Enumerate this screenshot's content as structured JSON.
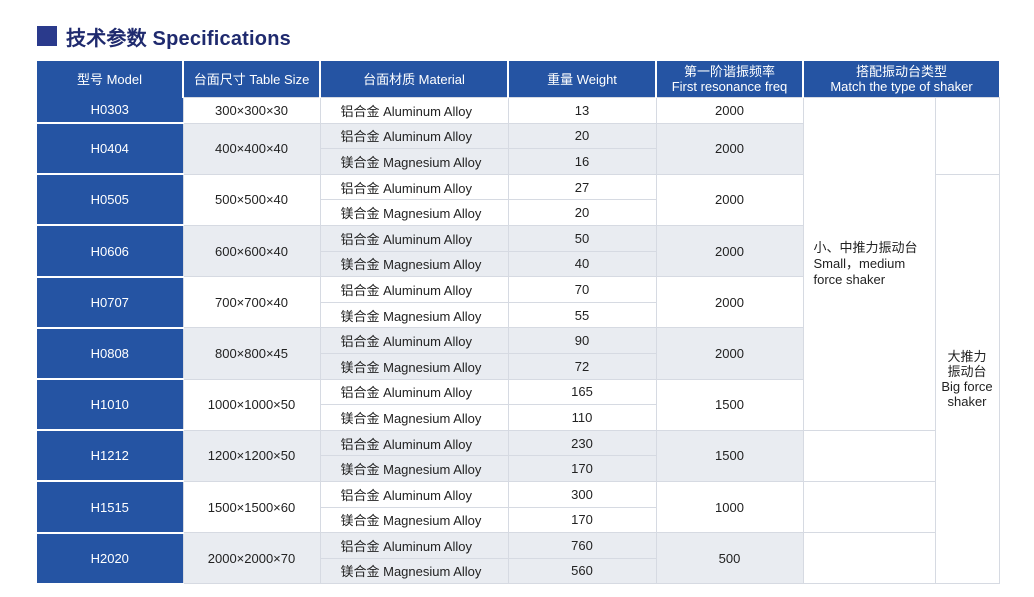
{
  "title": "技术参数 Specifications",
  "headers": {
    "model": "型号 Model",
    "table_size": "台面尺寸 Table Size",
    "material": "台面材质 Material",
    "weight": "重量 Weight",
    "freq_cn": "第一阶谐振频率",
    "freq_en": "First resonance freq",
    "shaker_cn": "搭配振动台类型",
    "shaker_en": "Match the type of shaker"
  },
  "materials": {
    "al": "铝合金 Aluminum Alloy",
    "mg": "镁合金 Magnesium Alloy"
  },
  "rows": [
    {
      "model": "H0303",
      "size": "300×300×30",
      "al": "13",
      "freq": "2000"
    },
    {
      "model": "H0404",
      "size": "400×400×40",
      "al": "20",
      "mg": "16",
      "freq": "2000"
    },
    {
      "model": "H0505",
      "size": "500×500×40",
      "al": "27",
      "mg": "20",
      "freq": "2000"
    },
    {
      "model": "H0606",
      "size": "600×600×40",
      "al": "50",
      "mg": "40",
      "freq": "2000"
    },
    {
      "model": "H0707",
      "size": "700×700×40",
      "al": "70",
      "mg": "55",
      "freq": "2000"
    },
    {
      "model": "H0808",
      "size": "800×800×45",
      "al": "90",
      "mg": "72",
      "freq": "2000"
    },
    {
      "model": "H1010",
      "size": "1000×1000×50",
      "al": "165",
      "mg": "110",
      "freq": "1500"
    },
    {
      "model": "H1212",
      "size": "1200×1200×50",
      "al": "230",
      "mg": "170",
      "freq": "1500"
    },
    {
      "model": "H1515",
      "size": "1500×1500×60",
      "al": "300",
      "mg": "170",
      "freq": "1000"
    },
    {
      "model": "H2020",
      "size": "2000×2000×70",
      "al": "760",
      "mg": "560",
      "freq": "500"
    }
  ],
  "shaker_small": {
    "cn": "小、中推力振动台",
    "en1": "Small，medium",
    "en2": "force shaker"
  },
  "shaker_big": {
    "cn1": "大推力",
    "cn2": "振动台",
    "en1": "Big force",
    "en2": "shaker"
  },
  "colors": {
    "header_bg": "#2554a3",
    "title_square": "#2a3a8c",
    "shade": "#e9ecf1"
  }
}
